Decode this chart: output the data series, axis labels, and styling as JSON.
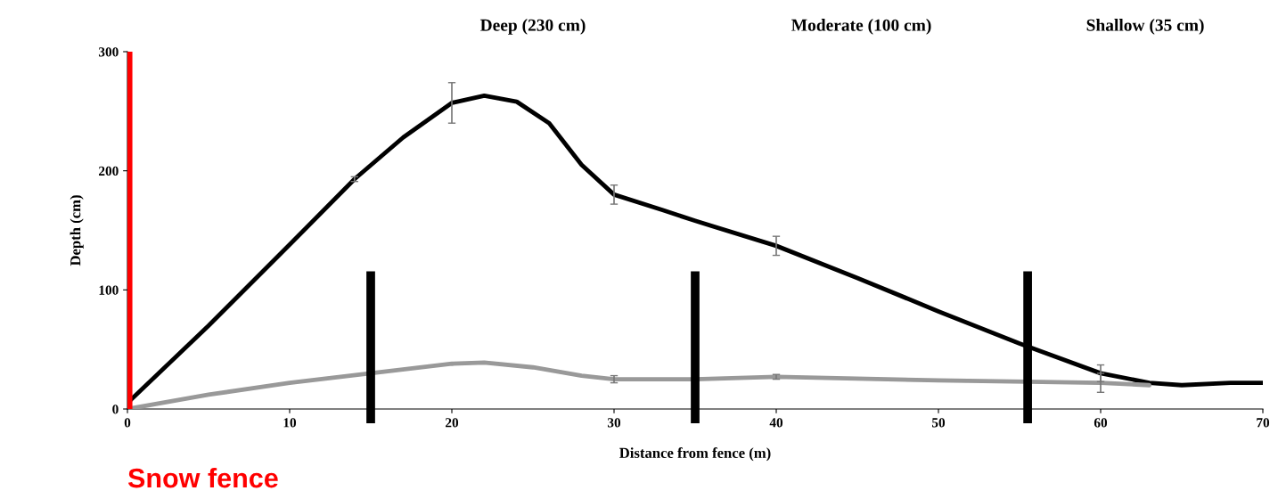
{
  "chart_data": {
    "type": "line",
    "xlabel": "Distance from fence (m)",
    "ylabel": "Depth (cm)",
    "annotations": [
      "Deep (230 cm)",
      "Moderate (100 cm)",
      "Shallow (35 cm)"
    ],
    "series": [
      {
        "color": "#000000",
        "x": [
          0,
          5,
          10,
          14,
          17,
          20,
          22,
          24,
          26,
          28,
          30,
          33,
          35,
          40,
          45,
          50,
          55,
          60,
          63,
          65,
          68,
          70
        ],
        "values": [
          5,
          70,
          138,
          193,
          228,
          257,
          263,
          258,
          240,
          205,
          180,
          167,
          158,
          137,
          110,
          82,
          55,
          30,
          22,
          20,
          22,
          22
        ],
        "errors": [
          null,
          null,
          null,
          2,
          null,
          17,
          null,
          null,
          null,
          null,
          8,
          null,
          null,
          8,
          null,
          null,
          null,
          7,
          null,
          null,
          null,
          null
        ]
      },
      {
        "color": "#999999",
        "x": [
          0,
          5,
          10,
          15,
          20,
          22,
          25,
          28,
          30,
          35,
          40,
          50,
          60,
          63
        ],
        "values": [
          0,
          12,
          22,
          30,
          38,
          39,
          35,
          28,
          25,
          25,
          27,
          24,
          22,
          20
        ],
        "errors": [
          null,
          null,
          null,
          null,
          null,
          null,
          null,
          null,
          3,
          null,
          2,
          null,
          8,
          null
        ]
      }
    ],
    "ref_lines": [
      {
        "axis": "x",
        "value": 0,
        "label": "Snow fence",
        "color": "#ff0000"
      },
      {
        "axis": "x",
        "value": 15,
        "color": "#000000"
      },
      {
        "axis": "x",
        "value": 35,
        "color": "#000000"
      },
      {
        "axis": "x",
        "value": 55.5,
        "color": "#000000"
      }
    ],
    "xlim": [
      0,
      70
    ],
    "xticks": [
      0,
      10,
      20,
      30,
      40,
      50,
      60,
      70
    ],
    "ylim": [
      0,
      300
    ],
    "yticks": [
      0,
      100,
      200,
      300
    ],
    "grid": false,
    "legend": false,
    "marker": "none",
    "line_style": "solid"
  }
}
